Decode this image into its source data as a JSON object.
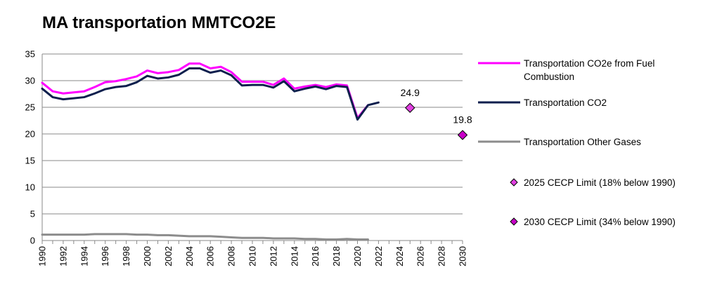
{
  "chart_data": {
    "type": "line",
    "title": "MA transportation MMTCO2E",
    "xlabel": "",
    "ylabel": "",
    "xlim": [
      1990,
      2030
    ],
    "ylim": [
      0,
      35
    ],
    "y_ticks": [
      0,
      5,
      10,
      15,
      20,
      25,
      30,
      35
    ],
    "x_ticks": [
      1990,
      1992,
      1994,
      1996,
      1998,
      2000,
      2002,
      2004,
      2006,
      2008,
      2010,
      2012,
      2014,
      2016,
      2018,
      2020,
      2022,
      2024,
      2026,
      2028,
      2030
    ],
    "grid": "horizontal",
    "legend_position": "right",
    "series": [
      {
        "name": "Transportation CO2e from Fuel Combustion",
        "kind": "line",
        "color": "#ff00ff",
        "x": [
          1990,
          1991,
          1992,
          1993,
          1994,
          1995,
          1996,
          1997,
          1998,
          1999,
          2000,
          2001,
          2002,
          2003,
          2004,
          2005,
          2006,
          2007,
          2008,
          2009,
          2010,
          2011,
          2012,
          2013,
          2014,
          2015,
          2016,
          2017,
          2018,
          2019,
          2020,
          2021
        ],
        "values": [
          29.6,
          28.0,
          27.6,
          27.8,
          28.0,
          28.8,
          29.7,
          29.9,
          30.3,
          30.8,
          31.9,
          31.4,
          31.6,
          32.0,
          33.2,
          33.2,
          32.3,
          32.6,
          31.6,
          29.8,
          29.8,
          29.8,
          29.2,
          30.4,
          28.5,
          28.9,
          29.2,
          28.8,
          29.3,
          29.1,
          23.0,
          25.4
        ]
      },
      {
        "name": "Transportation CO2",
        "kind": "line",
        "color": "#0d1f4d",
        "x": [
          1990,
          1991,
          1992,
          1993,
          1994,
          1995,
          1996,
          1997,
          1998,
          1999,
          2000,
          2001,
          2002,
          2003,
          2004,
          2005,
          2006,
          2007,
          2008,
          2009,
          2010,
          2011,
          2012,
          2013,
          2014,
          2015,
          2016,
          2017,
          2018,
          2019,
          2020,
          2021,
          2022
        ],
        "values": [
          28.5,
          26.9,
          26.5,
          26.7,
          26.9,
          27.6,
          28.4,
          28.8,
          29.0,
          29.7,
          30.9,
          30.4,
          30.6,
          31.1,
          32.3,
          32.3,
          31.5,
          31.9,
          31.0,
          29.1,
          29.2,
          29.2,
          28.7,
          29.9,
          28.0,
          28.5,
          28.9,
          28.4,
          29.0,
          28.8,
          22.7,
          25.4,
          25.9
        ]
      },
      {
        "name": "Transportation Other Gases",
        "kind": "line",
        "color": "#8c8c8c",
        "x": [
          1990,
          1991,
          1992,
          1993,
          1994,
          1995,
          1996,
          1997,
          1998,
          1999,
          2000,
          2001,
          2002,
          2003,
          2004,
          2005,
          2006,
          2007,
          2008,
          2009,
          2010,
          2011,
          2012,
          2013,
          2014,
          2015,
          2016,
          2017,
          2018,
          2019,
          2020,
          2021
        ],
        "values": [
          1.1,
          1.1,
          1.1,
          1.1,
          1.1,
          1.2,
          1.2,
          1.2,
          1.2,
          1.1,
          1.1,
          1.0,
          1.0,
          0.9,
          0.8,
          0.8,
          0.8,
          0.7,
          0.6,
          0.5,
          0.5,
          0.5,
          0.4,
          0.4,
          0.4,
          0.3,
          0.3,
          0.2,
          0.2,
          0.3,
          0.2,
          0.2
        ]
      },
      {
        "name": "2025 CECP Limit (18% below 1990)",
        "kind": "marker",
        "color": "#e040e0",
        "x": [
          2025
        ],
        "values": [
          24.9
        ],
        "label": "24.9"
      },
      {
        "name": "2030 CECP Limit (34% below 1990)",
        "kind": "marker",
        "color": "#c800c8",
        "x": [
          2030
        ],
        "values": [
          19.8
        ],
        "label": "19.8"
      }
    ]
  }
}
